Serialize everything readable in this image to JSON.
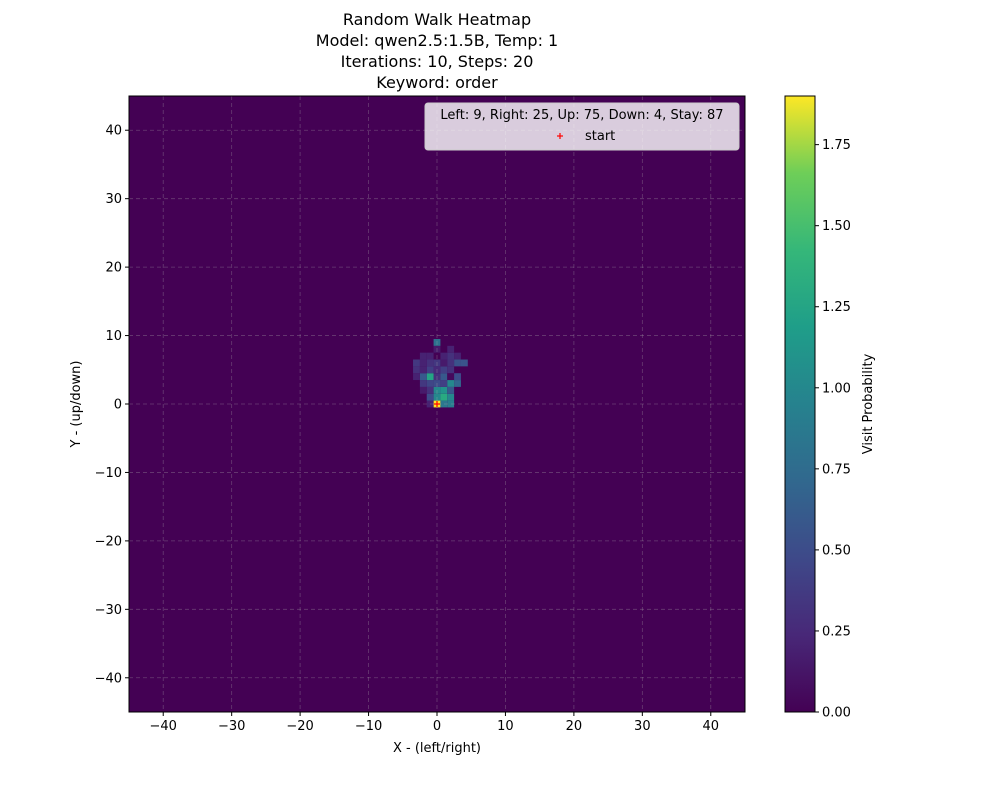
{
  "chart_data": {
    "type": "heatmap",
    "title_lines": [
      "Random Walk Heatmap",
      "Model: qwen2.5:1.5B, Temp: 1",
      "Iterations: 10, Steps: 20",
      "Keyword: order"
    ],
    "xlabel": "X - (left/right)",
    "ylabel": "Y - (up/down)",
    "xlim": [
      -45,
      45
    ],
    "ylim": [
      -45,
      45
    ],
    "xticks": [
      -40,
      -30,
      -20,
      -10,
      0,
      10,
      20,
      30,
      40
    ],
    "yticks": [
      -40,
      -30,
      -20,
      -10,
      0,
      10,
      20,
      30,
      40
    ],
    "xtick_labels": [
      "−40",
      "−30",
      "−20",
      "−10",
      "0",
      "10",
      "20",
      "30",
      "40"
    ],
    "ytick_labels": [
      "−40",
      "−30",
      "−20",
      "−10",
      "0",
      "10",
      "20",
      "30",
      "40"
    ],
    "grid": true,
    "colormap": "viridis",
    "colorbar": {
      "label": "Visit Probability",
      "range": [
        0,
        1.9
      ],
      "ticks": [
        0.0,
        0.25,
        0.5,
        0.75,
        1.0,
        1.25,
        1.5,
        1.75
      ],
      "tick_labels": [
        "0.00",
        "0.25",
        "0.50",
        "0.75",
        "1.00",
        "1.25",
        "1.50",
        "1.75"
      ]
    },
    "legend": {
      "position": "upper right",
      "title": "Left: 9, Right: 25, Up: 75, Down: 4, Stay: 87",
      "entries": [
        {
          "label": "start",
          "marker": "+",
          "color": "#ff0000"
        }
      ]
    },
    "start_point": [
      0,
      0
    ],
    "cells": [
      {
        "x": 0,
        "y": 0,
        "v": 1.9
      },
      {
        "x": 1,
        "y": 0,
        "v": 0.85
      },
      {
        "x": 2,
        "y": 0,
        "v": 0.9
      },
      {
        "x": -1,
        "y": 0,
        "v": 0.2
      },
      {
        "x": 0,
        "y": 1,
        "v": 1.0
      },
      {
        "x": 1,
        "y": 1,
        "v": 1.3
      },
      {
        "x": 2,
        "y": 1,
        "v": 1.0
      },
      {
        "x": -1,
        "y": 1,
        "v": 0.5
      },
      {
        "x": 0,
        "y": 2,
        "v": 1.0
      },
      {
        "x": 1,
        "y": 2,
        "v": 1.1
      },
      {
        "x": 2,
        "y": 2,
        "v": 0.6
      },
      {
        "x": -1,
        "y": 2,
        "v": 0.3
      },
      {
        "x": -2,
        "y": 2,
        "v": 0.15
      },
      {
        "x": 0,
        "y": 3,
        "v": 0.5
      },
      {
        "x": 1,
        "y": 3,
        "v": 0.4
      },
      {
        "x": 2,
        "y": 3,
        "v": 1.0
      },
      {
        "x": 3,
        "y": 3,
        "v": 0.7
      },
      {
        "x": -1,
        "y": 3,
        "v": 0.45
      },
      {
        "x": -2,
        "y": 3,
        "v": 0.35
      },
      {
        "x": 0,
        "y": 4,
        "v": 0.3
      },
      {
        "x": 1,
        "y": 4,
        "v": 0.6
      },
      {
        "x": 2,
        "y": 4,
        "v": 0.05
      },
      {
        "x": 3,
        "y": 4,
        "v": 0.5
      },
      {
        "x": -1,
        "y": 4,
        "v": 1.25
      },
      {
        "x": -2,
        "y": 4,
        "v": 0.6
      },
      {
        "x": -3,
        "y": 4,
        "v": 0.2
      },
      {
        "x": 0,
        "y": 5,
        "v": 0.25
      },
      {
        "x": 1,
        "y": 5,
        "v": 0.4
      },
      {
        "x": 2,
        "y": 5,
        "v": 0.3
      },
      {
        "x": -1,
        "y": 5,
        "v": 0.4
      },
      {
        "x": -2,
        "y": 5,
        "v": 0.2
      },
      {
        "x": -3,
        "y": 5,
        "v": 0.3
      },
      {
        "x": 0,
        "y": 6,
        "v": 0.35
      },
      {
        "x": 1,
        "y": 6,
        "v": 0.15
      },
      {
        "x": 2,
        "y": 6,
        "v": 0.3
      },
      {
        "x": 3,
        "y": 6,
        "v": 0.55
      },
      {
        "x": 4,
        "y": 6,
        "v": 0.55
      },
      {
        "x": -1,
        "y": 6,
        "v": 0.3
      },
      {
        "x": -2,
        "y": 6,
        "v": 0.2
      },
      {
        "x": -3,
        "y": 6,
        "v": 0.35
      },
      {
        "x": 1,
        "y": 7,
        "v": 0.2
      },
      {
        "x": 2,
        "y": 7,
        "v": 0.3
      },
      {
        "x": 3,
        "y": 7,
        "v": 0.2
      },
      {
        "x": -1,
        "y": 7,
        "v": 0.2
      },
      {
        "x": -2,
        "y": 7,
        "v": 0.2
      },
      {
        "x": 0,
        "y": 8,
        "v": 0.15
      },
      {
        "x": 2,
        "y": 8,
        "v": 0.2
      },
      {
        "x": 0,
        "y": 9,
        "v": 0.8
      }
    ]
  }
}
